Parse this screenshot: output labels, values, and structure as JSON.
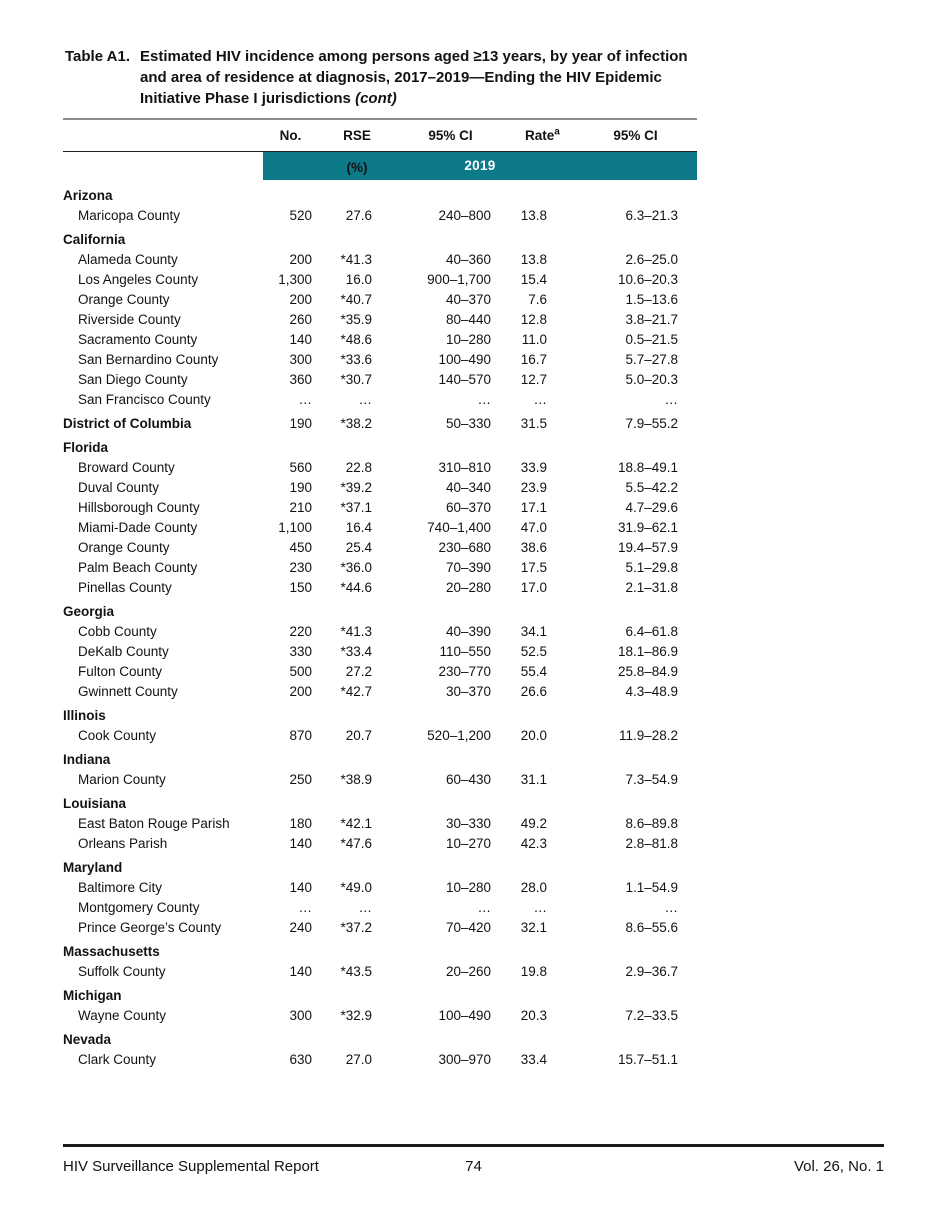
{
  "header": {
    "label": "Table A1.",
    "title_lines": [
      "Estimated HIV incidence among persons aged ≥13 years, by year of",
      "infection and area of residence at diagnosis, 2017–2019—Ending the HIV",
      "Epidemic Initiative Phase I jurisdictions"
    ],
    "cont": "(cont)"
  },
  "table": {
    "year": "2019",
    "columns": {
      "no": "No.",
      "rse": "RSE (%)",
      "ci1": "95% CI",
      "rate": "Rate",
      "rate_sup": "a",
      "ci2": "95% CI"
    },
    "sections": [
      {
        "state": "Arizona",
        "rows": [
          {
            "name": "Maricopa County",
            "no": "520",
            "rse": "27.6",
            "ci": "240–800",
            "rate": "13.8",
            "rate_ci": "6.3–21.3"
          }
        ]
      },
      {
        "state": "California",
        "rows": [
          {
            "name": "Alameda County",
            "no": "200",
            "rse": "*41.3",
            "ci": "40–360",
            "rate": "13.8",
            "rate_ci": "2.6–25.0"
          },
          {
            "name": "Los Angeles County",
            "no": "1,300",
            "rse": "16.0",
            "ci": "900–1,700",
            "rate": "15.4",
            "rate_ci": "10.6–20.3"
          },
          {
            "name": "Orange County",
            "no": "200",
            "rse": "*40.7",
            "ci": "40–370",
            "rate": "7.6",
            "rate_ci": "1.5–13.6"
          },
          {
            "name": "Riverside County",
            "no": "260",
            "rse": "*35.9",
            "ci": "80–440",
            "rate": "12.8",
            "rate_ci": "3.8–21.7"
          },
          {
            "name": "Sacramento County",
            "no": "140",
            "rse": "*48.6",
            "ci": "10–280",
            "rate": "11.0",
            "rate_ci": "0.5–21.5"
          },
          {
            "name": "San Bernardino County",
            "no": "300",
            "rse": "*33.6",
            "ci": "100–490",
            "rate": "16.7",
            "rate_ci": "5.7–27.8"
          },
          {
            "name": "San Diego County",
            "no": "360",
            "rse": "*30.7",
            "ci": "140–570",
            "rate": "12.7",
            "rate_ci": "5.0–20.3"
          },
          {
            "name": "San Francisco County",
            "no": "…",
            "rse": "…",
            "ci": "…",
            "rate": "…",
            "rate_ci": "…"
          }
        ]
      },
      {
        "state": "District of Columbia",
        "values": {
          "no": "190",
          "rse": "*38.2",
          "ci": "50–330",
          "rate": "31.5",
          "rate_ci": "7.9–55.2"
        },
        "rows": []
      },
      {
        "state": "Florida",
        "rows": [
          {
            "name": "Broward County",
            "no": "560",
            "rse": "22.8",
            "ci": "310–810",
            "rate": "33.9",
            "rate_ci": "18.8–49.1"
          },
          {
            "name": "Duval County",
            "no": "190",
            "rse": "*39.2",
            "ci": "40–340",
            "rate": "23.9",
            "rate_ci": "5.5–42.2"
          },
          {
            "name": "Hillsborough County",
            "no": "210",
            "rse": "*37.1",
            "ci": "60–370",
            "rate": "17.1",
            "rate_ci": "4.7–29.6"
          },
          {
            "name": "Miami-Dade County",
            "no": "1,100",
            "rse": "16.4",
            "ci": "740–1,400",
            "rate": "47.0",
            "rate_ci": "31.9–62.1"
          },
          {
            "name": "Orange County",
            "no": "450",
            "rse": "25.4",
            "ci": "230–680",
            "rate": "38.6",
            "rate_ci": "19.4–57.9"
          },
          {
            "name": "Palm Beach County",
            "no": "230",
            "rse": "*36.0",
            "ci": "70–390",
            "rate": "17.5",
            "rate_ci": "5.1–29.8"
          },
          {
            "name": "Pinellas County",
            "no": "150",
            "rse": "*44.6",
            "ci": "20–280",
            "rate": "17.0",
            "rate_ci": "2.1–31.8"
          }
        ]
      },
      {
        "state": "Georgia",
        "rows": [
          {
            "name": "Cobb County",
            "no": "220",
            "rse": "*41.3",
            "ci": "40–390",
            "rate": "34.1",
            "rate_ci": "6.4–61.8"
          },
          {
            "name": "DeKalb County",
            "no": "330",
            "rse": "*33.4",
            "ci": "110–550",
            "rate": "52.5",
            "rate_ci": "18.1–86.9"
          },
          {
            "name": "Fulton County",
            "no": "500",
            "rse": "27.2",
            "ci": "230–770",
            "rate": "55.4",
            "rate_ci": "25.8–84.9"
          },
          {
            "name": "Gwinnett County",
            "no": "200",
            "rse": "*42.7",
            "ci": "30–370",
            "rate": "26.6",
            "rate_ci": "4.3–48.9"
          }
        ]
      },
      {
        "state": "Illinois",
        "rows": [
          {
            "name": "Cook County",
            "no": "870",
            "rse": "20.7",
            "ci": "520–1,200",
            "rate": "20.0",
            "rate_ci": "11.9–28.2"
          }
        ]
      },
      {
        "state": "Indiana",
        "rows": [
          {
            "name": "Marion County",
            "no": "250",
            "rse": "*38.9",
            "ci": "60–430",
            "rate": "31.1",
            "rate_ci": "7.3–54.9"
          }
        ]
      },
      {
        "state": "Louisiana",
        "rows": [
          {
            "name": "East Baton Rouge Parish",
            "no": "180",
            "rse": "*42.1",
            "ci": "30–330",
            "rate": "49.2",
            "rate_ci": "8.6–89.8"
          },
          {
            "name": "Orleans Parish",
            "no": "140",
            "rse": "*47.6",
            "ci": "10–270",
            "rate": "42.3",
            "rate_ci": "2.8–81.8"
          }
        ]
      },
      {
        "state": "Maryland",
        "rows": [
          {
            "name": "Baltimore City",
            "no": "140",
            "rse": "*49.0",
            "ci": "10–280",
            "rate": "28.0",
            "rate_ci": "1.1–54.9"
          },
          {
            "name": "Montgomery County",
            "no": "…",
            "rse": "…",
            "ci": "…",
            "rate": "…",
            "rate_ci": "…"
          },
          {
            "name": "Prince George’s County",
            "no": "240",
            "rse": "*37.2",
            "ci": "70–420",
            "rate": "32.1",
            "rate_ci": "8.6–55.6"
          }
        ]
      },
      {
        "state": "Massachusetts",
        "rows": [
          {
            "name": "Suffolk County",
            "no": "140",
            "rse": "*43.5",
            "ci": "20–260",
            "rate": "19.8",
            "rate_ci": "2.9–36.7"
          }
        ]
      },
      {
        "state": "Michigan",
        "rows": [
          {
            "name": "Wayne County",
            "no": "300",
            "rse": "*32.9",
            "ci": "100–490",
            "rate": "20.3",
            "rate_ci": "7.2–33.5"
          }
        ]
      },
      {
        "state": "Nevada",
        "rows": [
          {
            "name": "Clark County",
            "no": "630",
            "rse": "27.0",
            "ci": "300–970",
            "rate": "33.4",
            "rate_ci": "15.7–51.1"
          }
        ]
      }
    ]
  },
  "colors": {
    "year_band_bg": "#0d7a8a",
    "year_band_text": "#ffffff"
  },
  "footer": {
    "left": "HIV Surveillance Supplemental Report",
    "center_page": "74",
    "right": "Vol. 26, No. 1"
  }
}
